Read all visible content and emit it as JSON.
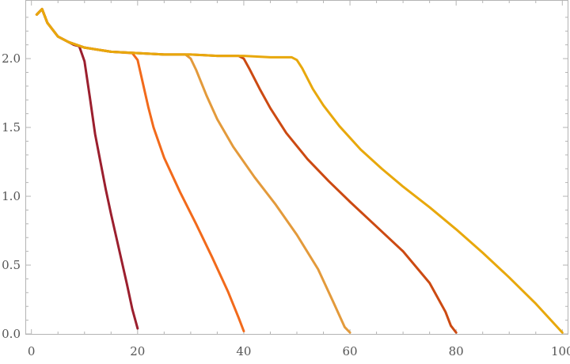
{
  "chart_data": {
    "type": "line",
    "title": "",
    "xlabel": "",
    "ylabel": "",
    "xlim": [
      -1,
      101
    ],
    "ylim": [
      0,
      2.42
    ],
    "x_ticks": [
      0,
      20,
      40,
      60,
      80,
      100
    ],
    "x_tick_labels": [
      "0",
      "20",
      "40",
      "60",
      "80",
      "100"
    ],
    "y_ticks": [
      0.0,
      0.5,
      1.0,
      1.5,
      2.0
    ],
    "y_tick_labels": [
      "0.0",
      "0.5",
      "1.0",
      "1.5",
      "2.0"
    ],
    "grid": false,
    "legend": "none",
    "series": [
      {
        "color": "#9b1f2e",
        "x": [
          1,
          2,
          3,
          5,
          7,
          8,
          9,
          10,
          11,
          12,
          13,
          14,
          15,
          16,
          17,
          18,
          19,
          20
        ],
        "y": [
          2.32,
          2.36,
          2.26,
          2.16,
          2.12,
          2.1,
          2.09,
          1.98,
          1.72,
          1.45,
          1.25,
          1.05,
          0.87,
          0.7,
          0.53,
          0.36,
          0.18,
          0.04
        ]
      },
      {
        "color": "#f26a1b",
        "x": [
          1,
          2,
          3,
          5,
          7,
          10,
          15,
          19,
          20,
          21,
          22,
          23,
          25,
          28,
          31,
          34,
          37,
          39,
          40
        ],
        "y": [
          2.32,
          2.36,
          2.26,
          2.16,
          2.12,
          2.08,
          2.05,
          2.04,
          1.99,
          1.82,
          1.65,
          1.5,
          1.28,
          1.03,
          0.8,
          0.56,
          0.31,
          0.12,
          0.02
        ]
      },
      {
        "color": "#e39a3b",
        "x": [
          1,
          2,
          3,
          5,
          7,
          10,
          15,
          20,
          25,
          29,
          30,
          31,
          33,
          35,
          38,
          42,
          46,
          50,
          54,
          57,
          59,
          60
        ],
        "y": [
          2.32,
          2.36,
          2.26,
          2.16,
          2.12,
          2.08,
          2.05,
          2.04,
          2.03,
          2.03,
          2.0,
          1.92,
          1.73,
          1.56,
          1.36,
          1.14,
          0.94,
          0.72,
          0.47,
          0.22,
          0.05,
          0.01
        ]
      },
      {
        "color": "#cc4a12",
        "x": [
          1,
          2,
          3,
          5,
          7,
          10,
          15,
          20,
          25,
          30,
          35,
          39,
          40,
          41,
          43,
          45,
          48,
          52,
          56,
          60,
          65,
          70,
          75,
          78,
          79,
          80
        ],
        "y": [
          2.32,
          2.36,
          2.26,
          2.16,
          2.12,
          2.08,
          2.05,
          2.04,
          2.03,
          2.03,
          2.02,
          2.02,
          2.0,
          1.93,
          1.78,
          1.64,
          1.46,
          1.27,
          1.11,
          0.96,
          0.78,
          0.6,
          0.37,
          0.16,
          0.06,
          0.01
        ]
      },
      {
        "color": "#e8a80c",
        "x": [
          1,
          2,
          3,
          5,
          7,
          10,
          15,
          20,
          25,
          30,
          35,
          40,
          45,
          49,
          50,
          51,
          53,
          55,
          58,
          62,
          66,
          70,
          75,
          80,
          85,
          90,
          95,
          100
        ],
        "y": [
          2.32,
          2.36,
          2.26,
          2.16,
          2.12,
          2.08,
          2.05,
          2.04,
          2.03,
          2.03,
          2.02,
          2.02,
          2.01,
          2.01,
          1.99,
          1.93,
          1.78,
          1.66,
          1.51,
          1.34,
          1.2,
          1.07,
          0.92,
          0.76,
          0.59,
          0.41,
          0.22,
          0.01
        ]
      }
    ]
  }
}
